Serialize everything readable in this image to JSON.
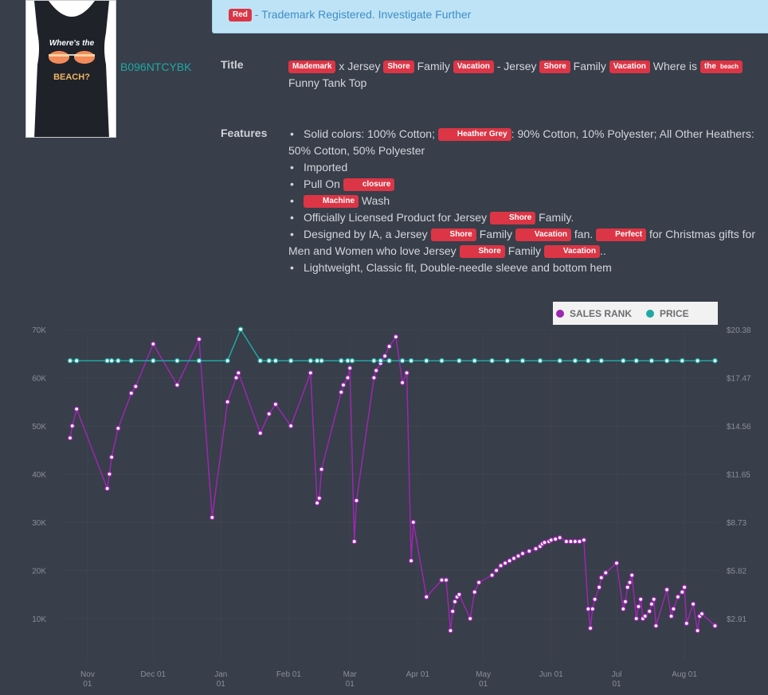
{
  "product": {
    "asin": "B096NTCYBK",
    "thumbnail_text": "Where's the BEACH?"
  },
  "alert": {
    "tag": "Red",
    "message": " - Trademark Registered. Investigate Further"
  },
  "title_section": {
    "label": "Title",
    "segments": [
      {
        "type": "tag",
        "text": "Mademark"
      },
      {
        "type": "text",
        "text": " x Jersey "
      },
      {
        "type": "tag",
        "text": "Shore"
      },
      {
        "type": "text",
        "text": " Family "
      },
      {
        "type": "tag",
        "text": "Vacation"
      },
      {
        "type": "text",
        "text": " - Jersey "
      },
      {
        "type": "tag",
        "text": "Shore"
      },
      {
        "type": "text",
        "text": " Family "
      },
      {
        "type": "tag",
        "text": "Vacation"
      },
      {
        "type": "text",
        "text": " Where is "
      },
      {
        "type": "tag2",
        "text": "the",
        "small": "beach"
      },
      {
        "type": "text",
        "text": " Funny Tank Top"
      }
    ]
  },
  "features_section": {
    "label": "Features",
    "items": [
      [
        {
          "type": "text",
          "text": "Solid colors: 100% Cotton; "
        },
        {
          "type": "tag",
          "text": "Heather Grey"
        },
        {
          "type": "text",
          "text": ": 90% Cotton, 10% Polyester; All Other Heathers: 50% Cotton, 50% Polyester"
        }
      ],
      [
        {
          "type": "text",
          "text": "Imported"
        }
      ],
      [
        {
          "type": "text",
          "text": "Pull On "
        },
        {
          "type": "tag",
          "text": "closure"
        }
      ],
      [
        {
          "type": "tag",
          "text": "Machine"
        },
        {
          "type": "text",
          "text": " Wash"
        }
      ],
      [
        {
          "type": "text",
          "text": "Officially Licensed Product for Jersey "
        },
        {
          "type": "tag",
          "text": "Shore"
        },
        {
          "type": "text",
          "text": " Family."
        }
      ],
      [
        {
          "type": "text",
          "text": "Designed by IA, a Jersey "
        },
        {
          "type": "tag",
          "text": "Shore"
        },
        {
          "type": "text",
          "text": " Family "
        },
        {
          "type": "tag",
          "text": "Vacation"
        },
        {
          "type": "text",
          "text": " fan. "
        },
        {
          "type": "tag",
          "text": "Perfect"
        },
        {
          "type": "text",
          "text": " for Christmas gifts for Men and Women who love Jersey "
        },
        {
          "type": "tag",
          "text": "Shore"
        },
        {
          "type": "text",
          "text": " Family "
        },
        {
          "type": "tag",
          "text": "Vacation"
        },
        {
          "type": "text",
          "text": ".."
        }
      ],
      [
        {
          "type": "text",
          "text": "Lightweight, Classic fit, Double-needle sleeve and bottom hem"
        }
      ]
    ]
  },
  "legend": {
    "sales_rank": {
      "label": "SALES RANK",
      "color": "#9c27b0"
    },
    "price": {
      "label": "PRICE",
      "color": "#1fa9a4"
    }
  },
  "chart_data": {
    "type": "line",
    "y_left_ticks": [
      "10K",
      "20K",
      "30K",
      "40K",
      "50K",
      "60K",
      "70K"
    ],
    "y_right_ticks": [
      "$2.91",
      "$5.82",
      "$8.73",
      "$11.65",
      "$14.56",
      "$17.47",
      "$20.38"
    ],
    "x_ticks": [
      {
        "line1": "Nov",
        "line2": "01"
      },
      {
        "line1": "Dec 01",
        "line2": ""
      },
      {
        "line1": "Jan",
        "line2": "01"
      },
      {
        "line1": "Feb 01",
        "line2": ""
      },
      {
        "line1": "Mar",
        "line2": "01"
      },
      {
        "line1": "Apr 01",
        "line2": ""
      },
      {
        "line1": "May",
        "line2": "01"
      },
      {
        "line1": "Jun 01",
        "line2": ""
      },
      {
        "line1": "Jul",
        "line2": "01"
      },
      {
        "line1": "Aug 01",
        "line2": ""
      }
    ],
    "series": [
      {
        "name": "SALES RANK",
        "color": "#9c27b0",
        "points": [
          [
            "2021-10-24",
            47500
          ],
          [
            "2021-10-25",
            50000
          ],
          [
            "2021-10-27",
            53500
          ],
          [
            "2021-11-10",
            37000
          ],
          [
            "2021-11-11",
            40000
          ],
          [
            "2021-11-12",
            43500
          ],
          [
            "2021-11-15",
            49500
          ],
          [
            "2021-11-21",
            56800
          ],
          [
            "2021-11-23",
            58200
          ],
          [
            "2021-12-01",
            67000
          ],
          [
            "2021-12-12",
            58500
          ],
          [
            "2021-12-22",
            68000
          ],
          [
            "2021-12-28",
            31000
          ],
          [
            "2022-01-04",
            55000
          ],
          [
            "2022-01-08",
            60000
          ],
          [
            "2022-01-09",
            61000
          ],
          [
            "2022-01-19",
            48500
          ],
          [
            "2022-01-23",
            52500
          ],
          [
            "2022-01-26",
            54500
          ],
          [
            "2022-02-02",
            50000
          ],
          [
            "2022-02-11",
            61000
          ],
          [
            "2022-02-14",
            34000
          ],
          [
            "2022-02-15",
            35000
          ],
          [
            "2022-02-16",
            41000
          ],
          [
            "2022-02-25",
            57000
          ],
          [
            "2022-02-26",
            58500
          ],
          [
            "2022-02-28",
            60000
          ],
          [
            "2022-03-01",
            62000
          ],
          [
            "2022-03-03",
            26000
          ],
          [
            "2022-03-04",
            34500
          ],
          [
            "2022-03-12",
            60000
          ],
          [
            "2022-03-13",
            61500
          ],
          [
            "2022-03-15",
            63000
          ],
          [
            "2022-03-17",
            64500
          ],
          [
            "2022-03-19",
            66500
          ],
          [
            "2022-03-22",
            68500
          ],
          [
            "2022-03-25",
            59000
          ],
          [
            "2022-03-27",
            61000
          ],
          [
            "2022-03-29",
            22000
          ],
          [
            "2022-03-30",
            30000
          ],
          [
            "2022-04-05",
            14500
          ],
          [
            "2022-04-12",
            18000
          ],
          [
            "2022-04-14",
            18000
          ],
          [
            "2022-04-16",
            7500
          ],
          [
            "2022-04-17",
            11500
          ],
          [
            "2022-04-18",
            13500
          ],
          [
            "2022-04-19",
            14500
          ],
          [
            "2022-04-20",
            15000
          ],
          [
            "2022-04-25",
            10000
          ],
          [
            "2022-04-27",
            15500
          ],
          [
            "2022-04-29",
            17500
          ],
          [
            "2022-05-05",
            19000
          ],
          [
            "2022-05-07",
            20000
          ],
          [
            "2022-05-09",
            21000
          ],
          [
            "2022-05-11",
            21500
          ],
          [
            "2022-05-13",
            22000
          ],
          [
            "2022-05-15",
            22500
          ],
          [
            "2022-05-17",
            23000
          ],
          [
            "2022-05-19",
            23500
          ],
          [
            "2022-05-22",
            24000
          ],
          [
            "2022-05-25",
            24500
          ],
          [
            "2022-05-27",
            25000
          ],
          [
            "2022-05-28",
            25500
          ],
          [
            "2022-05-29",
            25800
          ],
          [
            "2022-05-31",
            26000
          ],
          [
            "2022-06-01",
            26300
          ],
          [
            "2022-06-03",
            26500
          ],
          [
            "2022-06-05",
            26800
          ],
          [
            "2022-06-08",
            26000
          ],
          [
            "2022-06-10",
            26000
          ],
          [
            "2022-06-12",
            26000
          ],
          [
            "2022-06-14",
            26000
          ],
          [
            "2022-06-16",
            26300
          ],
          [
            "2022-06-18",
            12000
          ],
          [
            "2022-06-19",
            8000
          ],
          [
            "2022-06-20",
            12000
          ],
          [
            "2022-06-21",
            14000
          ],
          [
            "2022-06-23",
            16500
          ],
          [
            "2022-06-24",
            18500
          ],
          [
            "2022-06-26",
            19500
          ],
          [
            "2022-07-01",
            21500
          ],
          [
            "2022-07-04",
            12000
          ],
          [
            "2022-07-05",
            13500
          ],
          [
            "2022-07-06",
            16500
          ],
          [
            "2022-07-07",
            17500
          ],
          [
            "2022-07-08",
            19000
          ],
          [
            "2022-07-10",
            10000
          ],
          [
            "2022-07-11",
            12500
          ],
          [
            "2022-07-12",
            14000
          ],
          [
            "2022-07-13",
            10000
          ],
          [
            "2022-07-14",
            10500
          ],
          [
            "2022-07-16",
            11500
          ],
          [
            "2022-07-17",
            13000
          ],
          [
            "2022-07-18",
            14000
          ],
          [
            "2022-07-19",
            8500
          ],
          [
            "2022-07-24",
            16000
          ],
          [
            "2022-07-26",
            10500
          ],
          [
            "2022-07-27",
            12000
          ],
          [
            "2022-07-29",
            14500
          ],
          [
            "2022-07-31",
            15500
          ],
          [
            "2022-08-01",
            16500
          ],
          [
            "2022-08-02",
            9000
          ],
          [
            "2022-08-05",
            13000
          ],
          [
            "2022-08-07",
            7500
          ],
          [
            "2022-08-08",
            10500
          ],
          [
            "2022-08-09",
            11000
          ],
          [
            "2022-08-15",
            8500
          ]
        ]
      },
      {
        "name": "PRICE",
        "color": "#1fa9a4",
        "points": [
          [
            "2021-10-24",
            18.5
          ],
          [
            "2021-10-27",
            18.5
          ],
          [
            "2021-11-10",
            18.5
          ],
          [
            "2021-11-12",
            18.5
          ],
          [
            "2021-11-15",
            18.5
          ],
          [
            "2021-11-21",
            18.5
          ],
          [
            "2021-12-01",
            18.5
          ],
          [
            "2021-12-12",
            18.5
          ],
          [
            "2021-12-22",
            18.5
          ],
          [
            "2022-01-04",
            18.5
          ],
          [
            "2022-01-10",
            20.4
          ],
          [
            "2022-01-19",
            18.5
          ],
          [
            "2022-01-23",
            18.5
          ],
          [
            "2022-01-26",
            18.5
          ],
          [
            "2022-02-02",
            18.5
          ],
          [
            "2022-02-11",
            18.5
          ],
          [
            "2022-02-14",
            18.5
          ],
          [
            "2022-02-16",
            18.5
          ],
          [
            "2022-02-25",
            18.5
          ],
          [
            "2022-02-28",
            18.5
          ],
          [
            "2022-03-02",
            18.5
          ],
          [
            "2022-03-12",
            18.5
          ],
          [
            "2022-03-15",
            18.5
          ],
          [
            "2022-03-19",
            18.5
          ],
          [
            "2022-03-25",
            18.5
          ],
          [
            "2022-03-29",
            18.5
          ],
          [
            "2022-04-05",
            18.5
          ],
          [
            "2022-04-12",
            18.5
          ],
          [
            "2022-04-20",
            18.5
          ],
          [
            "2022-04-27",
            18.5
          ],
          [
            "2022-05-05",
            18.5
          ],
          [
            "2022-05-12",
            18.5
          ],
          [
            "2022-05-19",
            18.5
          ],
          [
            "2022-05-27",
            18.5
          ],
          [
            "2022-06-05",
            18.5
          ],
          [
            "2022-06-12",
            18.5
          ],
          [
            "2022-06-18",
            18.5
          ],
          [
            "2022-06-24",
            18.5
          ],
          [
            "2022-07-04",
            18.5
          ],
          [
            "2022-07-10",
            18.5
          ],
          [
            "2022-07-17",
            18.5
          ],
          [
            "2022-07-24",
            18.5
          ],
          [
            "2022-07-31",
            18.5
          ],
          [
            "2022-08-07",
            18.5
          ],
          [
            "2022-08-15",
            18.5
          ]
        ]
      }
    ],
    "x_range": [
      "2021-10-20",
      "2022-08-17"
    ],
    "y_left_range": [
      0,
      70000
    ],
    "y_right_range": [
      0,
      20.38
    ],
    "grid": true,
    "legend_position": "top-right"
  }
}
